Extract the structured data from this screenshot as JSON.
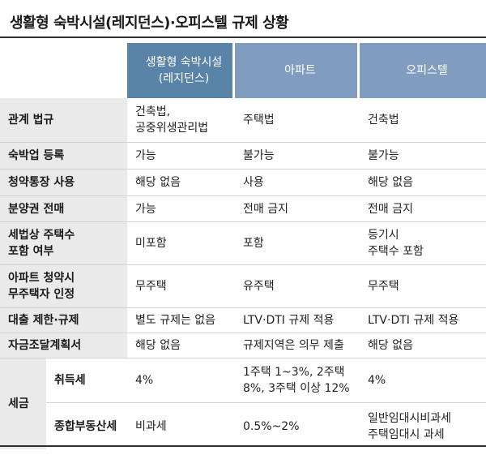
{
  "title": "생활형 숙박시설(레지던스)·오피스텔 규제 상황",
  "headers": {
    "col1_line1": "생활형 숙박시설",
    "col1_line2": "(레지던스)",
    "col2": "아파트",
    "col3": "오피스텔"
  },
  "rows": [
    {
      "label": [
        "관계 법규"
      ],
      "c1": [
        "건축법,",
        "공중위생관리법"
      ],
      "c2": [
        "주택법"
      ],
      "c3": [
        "건축법"
      ]
    },
    {
      "label": [
        "숙박업 등록"
      ],
      "c1": [
        "가능"
      ],
      "c2": [
        "불가능"
      ],
      "c3": [
        "불가능"
      ]
    },
    {
      "label": [
        "청약통장 사용"
      ],
      "c1": [
        "해당 없음"
      ],
      "c2": [
        "사용"
      ],
      "c3": [
        "해당 없음"
      ]
    },
    {
      "label": [
        "분양권 전매"
      ],
      "c1": [
        "가능"
      ],
      "c2": [
        "전매 금지"
      ],
      "c3": [
        "전매 금지"
      ]
    },
    {
      "label": [
        "세법상 주택수",
        "포함 여부"
      ],
      "c1": [
        "미포함"
      ],
      "c2": [
        "포함"
      ],
      "c3": [
        "등기시",
        "주택수 포함"
      ]
    },
    {
      "label": [
        "아파트 청약시",
        "무주택자 인정"
      ],
      "c1": [
        "무주택"
      ],
      "c2": [
        "유주택"
      ],
      "c3": [
        "무주택"
      ]
    },
    {
      "label": [
        "대출 제한·규제"
      ],
      "c1": [
        "별도 규제는 없음"
      ],
      "c2": [
        "LTV·DTI 규제 적용"
      ],
      "c3": [
        "LTV·DTI 규제 적용"
      ]
    },
    {
      "label": [
        "자금조달계획서"
      ],
      "c1": [
        "해당 없음"
      ],
      "c2": [
        "규제지역은 의무 제출"
      ],
      "c3": [
        "해당 없음"
      ]
    }
  ],
  "tax": {
    "label": "세금",
    "rows": [
      {
        "label": "취득세",
        "c1": [
          "4%"
        ],
        "c2": [
          "1주택 1~3%, 2주택",
          "8%, 3주택 이상 12%"
        ],
        "c3": [
          "4%"
        ]
      },
      {
        "label": "종합부동산세",
        "c1": [
          "비과세"
        ],
        "c2": [
          "0.5%~2%"
        ],
        "c3": [
          "일반임대시비과세",
          "주택임대시 과세"
        ]
      }
    ]
  }
}
